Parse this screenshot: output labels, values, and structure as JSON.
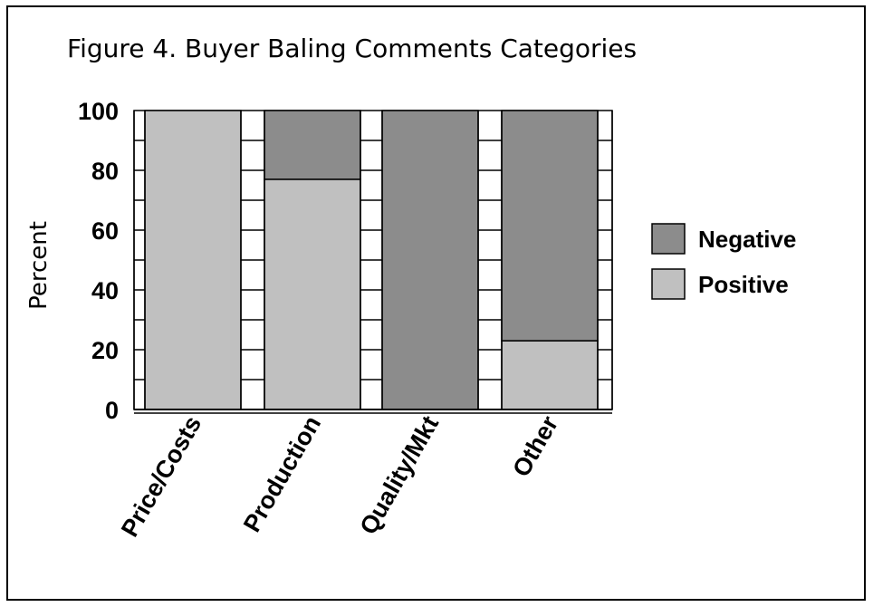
{
  "chart_data": {
    "type": "bar",
    "stacked": true,
    "title": "Figure 4.  Buyer Baling Comments Categories",
    "xlabel": "",
    "ylabel": "Percent",
    "ylim": [
      0,
      100
    ],
    "yticks": [
      0,
      20,
      40,
      60,
      80,
      100
    ],
    "categories": [
      "Price/Costs",
      "Production",
      "Quality/Mkt",
      "Other"
    ],
    "series": [
      {
        "name": "Positive",
        "color": "#c0c0c0",
        "values": [
          100,
          77,
          0,
          23
        ]
      },
      {
        "name": "Negative",
        "color": "#8c8c8c",
        "values": [
          0,
          23,
          100,
          77
        ]
      }
    ],
    "legend": {
      "placement": "right",
      "entries": [
        {
          "label": "Negative",
          "color": "#8c8c8c"
        },
        {
          "label": "Positive",
          "color": "#c0c0c0"
        }
      ]
    },
    "grid": false
  }
}
